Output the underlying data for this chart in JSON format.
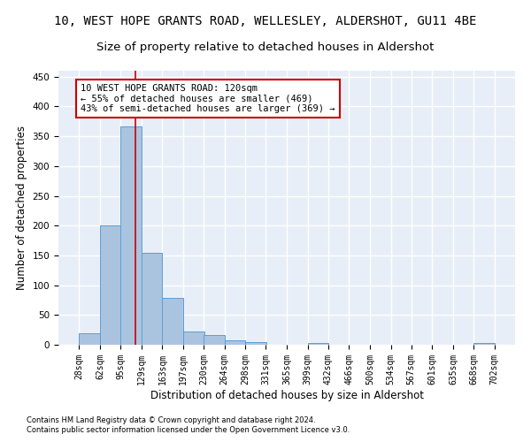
{
  "title": "10, WEST HOPE GRANTS ROAD, WELLESLEY, ALDERSHOT, GU11 4BE",
  "subtitle": "Size of property relative to detached houses in Aldershot",
  "xlabel": "Distribution of detached houses by size in Aldershot",
  "ylabel": "Number of detached properties",
  "footnote1": "Contains HM Land Registry data © Crown copyright and database right 2024.",
  "footnote2": "Contains public sector information licensed under the Open Government Licence v3.0.",
  "bin_edges": [
    28,
    62,
    95,
    129,
    163,
    197,
    230,
    264,
    298,
    331,
    365,
    399,
    432,
    466,
    500,
    534,
    567,
    601,
    635,
    668,
    702
  ],
  "bar_heights": [
    20,
    200,
    367,
    155,
    78,
    23,
    16,
    8,
    5,
    0,
    0,
    3,
    0,
    0,
    0,
    0,
    0,
    0,
    0,
    3
  ],
  "bar_color": "#aac4e0",
  "bar_edge_color": "#5a9fd4",
  "property_size": 120,
  "red_line_color": "#cc0000",
  "annotation_line1": "10 WEST HOPE GRANTS ROAD: 120sqm",
  "annotation_line2": "← 55% of detached houses are smaller (469)",
  "annotation_line3": "43% of semi-detached houses are larger (369) →",
  "annotation_box_color": "white",
  "annotation_box_edge": "#cc0000",
  "ylim": [
    0,
    460
  ],
  "yticks": [
    0,
    50,
    100,
    150,
    200,
    250,
    300,
    350,
    400,
    450
  ],
  "background_color": "#e8eef7",
  "grid_color": "white",
  "title_fontsize": 10,
  "subtitle_fontsize": 9.5,
  "axis_label_fontsize": 8.5,
  "tick_fontsize": 7,
  "annotation_fontsize": 7.5,
  "footnote_fontsize": 6
}
